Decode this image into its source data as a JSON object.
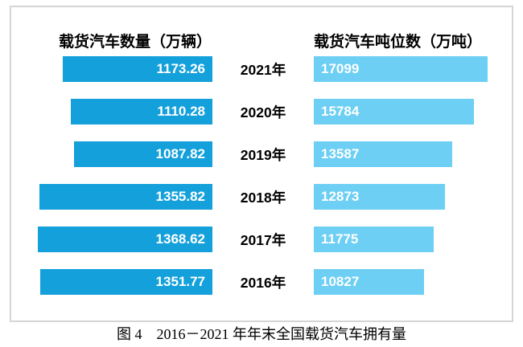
{
  "titles": {
    "left": "载货汽车数量（万辆）",
    "right": "载货汽车吨位数（万吨）"
  },
  "caption": "图 4　2016－2021 年年末全国载货汽车拥有量",
  "colors": {
    "left_bar": "#14a0da",
    "right_bar": "#6dcff4",
    "box_border": "#d5d5d5",
    "label_text": "#ffffff",
    "year_text": "#000000"
  },
  "rows": [
    {
      "year": "2021年",
      "left_label": "1173.26",
      "right_label": "17099"
    },
    {
      "year": "2020年",
      "left_label": "1110.28",
      "right_label": "15784"
    },
    {
      "year": "2019年",
      "left_label": "1087.82",
      "right_label": "13587"
    },
    {
      "year": "2018年",
      "left_label": "1355.82",
      "right_label": "12873"
    },
    {
      "year": "2017年",
      "left_label": "1368.62",
      "right_label": "11775"
    },
    {
      "year": "2016年",
      "left_label": "1351.77",
      "right_label": "10827"
    }
  ],
  "chart_data": {
    "type": "bar",
    "layout": "paired-horizontal",
    "title": "图 4　2016－2021 年年末全国载货汽车拥有量",
    "categories": [
      "2021年",
      "2020年",
      "2019年",
      "2018年",
      "2017年",
      "2016年"
    ],
    "series": [
      {
        "name": "载货汽车数量（万辆）",
        "values": [
          1173.26,
          1110.28,
          1087.82,
          1355.82,
          1368.62,
          1351.77
        ],
        "color": "#14a0da",
        "direction": "left",
        "value_labels": true
      },
      {
        "name": "载货汽车吨位数（万吨）",
        "values": [
          17099,
          15784,
          13587,
          12873,
          11775,
          10827
        ],
        "color": "#6dcff4",
        "direction": "right",
        "value_labels": true
      }
    ],
    "axes": "none",
    "grid": false,
    "legend_position": "column-headers"
  }
}
